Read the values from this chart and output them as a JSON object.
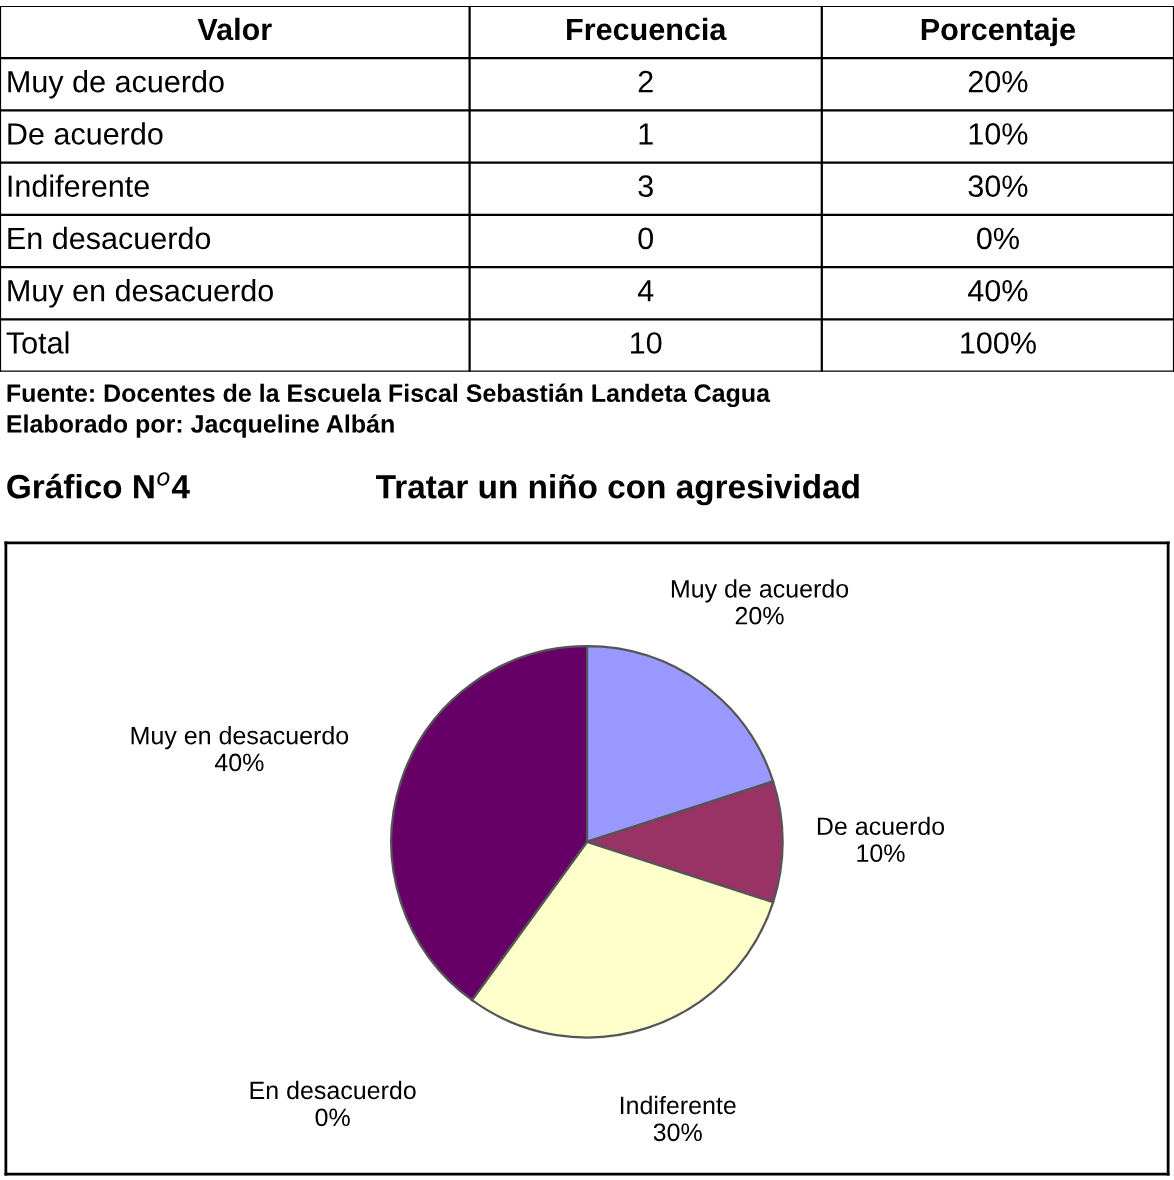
{
  "chart_data": [
    {
      "type": "other",
      "categories": [
        "Valor",
        "Frecuencia",
        "Porcentaje"
      ],
      "y_categories": [
        "Muy de acuerdo",
        "De acuerdo",
        "Indiferente",
        "En desacuerdo",
        "Muy en desacuerdo",
        "Total"
      ],
      "cell_labels": [
        [
          "2",
          "20%"
        ],
        [
          "1",
          "10%"
        ],
        [
          "3",
          "30%"
        ],
        [
          "0",
          "0%"
        ],
        [
          "4",
          "40%"
        ],
        [
          "10",
          "100%"
        ]
      ],
      "annotations": [
        "Fuente: Docentes de la Escuela Fiscal Sebastián Landeta Cagua",
        "Elaborado por: Jacqueline Albán"
      ]
    },
    {
      "type": "pie",
      "title": "Tratar un niño con agresividad",
      "subtitle": "Gráfico N$^{o}$4",
      "categories": [
        "Muy de acuerdo",
        "De acuerdo",
        "Indiferente",
        "En desacuerdo",
        "Muy en desacuerdo"
      ],
      "values": [
        20,
        10,
        30,
        0,
        40
      ],
      "value_labels": [
        "20%",
        "10%",
        "30%",
        "0%",
        "40%"
      ],
      "colors": [
        "#9999ff",
        "#993366",
        "#ffffcc",
        "#ccffff",
        "#660066"
      ]
    }
  ]
}
